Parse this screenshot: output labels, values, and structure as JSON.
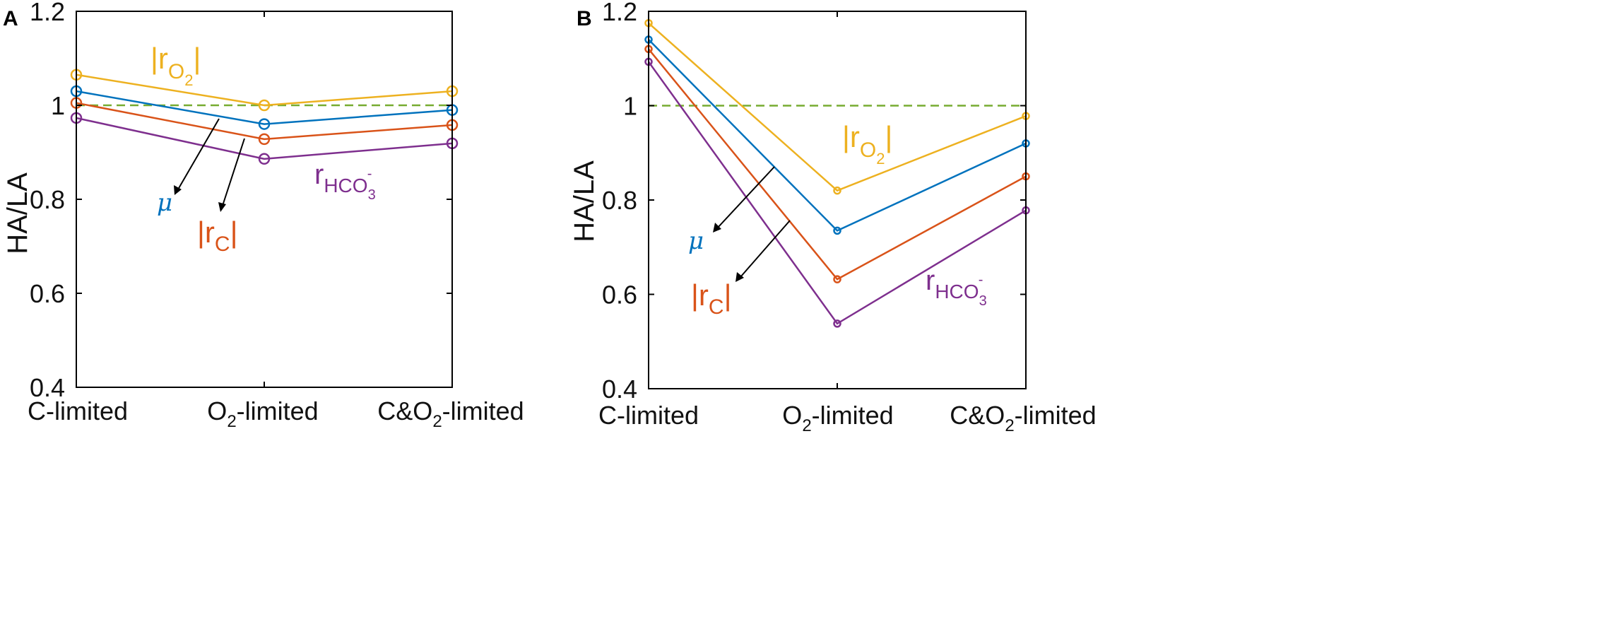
{
  "colors": {
    "rO2": "#EDB120",
    "mu": "#0072BD",
    "rC": "#D95319",
    "rHCO3": "#7E2F8E",
    "reference": "#77AC30",
    "axis": "#000000"
  },
  "labels": {
    "rO2": {
      "bar_open": "|r",
      "sub": "O",
      "subsub": "2",
      "bar_close": "|"
    },
    "rC": {
      "bar_open": "|r",
      "sub": "C",
      "bar_close": "|"
    },
    "rHCO3": {
      "main": "r",
      "sub": "HCO",
      "subsub": "3",
      "sup": "-"
    },
    "mu": "μ"
  },
  "chart_data": [
    {
      "panel": "A",
      "type": "line",
      "ylabel": "HA/LA",
      "xlabel": "",
      "categories": [
        {
          "main": "C-limited",
          "sub": "",
          "rest": ""
        },
        {
          "main": "O",
          "sub": "2",
          "rest": "-limited"
        },
        {
          "main": "C&O",
          "sub": "2",
          "rest": "-limited"
        }
      ],
      "ylim": [
        0.4,
        1.2
      ],
      "yticks": [
        "0.4",
        "0.6",
        "0.8",
        "1",
        "1.2"
      ],
      "reference_line": 1.0,
      "series": [
        {
          "key": "rO2",
          "name": "|rO2|",
          "values": [
            1.065,
            1.0,
            1.03
          ]
        },
        {
          "key": "mu",
          "name": "μ",
          "values": [
            1.03,
            0.96,
            0.99
          ]
        },
        {
          "key": "rC",
          "name": "|rC|",
          "values": [
            1.005,
            0.928,
            0.958
          ]
        },
        {
          "key": "rHCO3",
          "name": "rHCO3-",
          "values": [
            0.973,
            0.886,
            0.919
          ]
        }
      ]
    },
    {
      "panel": "B",
      "type": "line",
      "ylabel": "HA/LA",
      "xlabel": "",
      "categories": [
        {
          "main": "C-limited",
          "sub": "",
          "rest": ""
        },
        {
          "main": "O",
          "sub": "2",
          "rest": "-limited"
        },
        {
          "main": "C&O",
          "sub": "2",
          "rest": "-limited"
        }
      ],
      "ylim": [
        0.4,
        1.2
      ],
      "yticks": [
        "0.4",
        "0.6",
        "0.8",
        "1",
        "1.2"
      ],
      "reference_line": 1.0,
      "series": [
        {
          "key": "rO2",
          "name": "|rO2|",
          "values": [
            1.175,
            0.82,
            0.978
          ]
        },
        {
          "key": "mu",
          "name": "μ",
          "values": [
            1.14,
            0.735,
            0.92
          ]
        },
        {
          "key": "rC",
          "name": "|rC|",
          "values": [
            1.12,
            0.632,
            0.85
          ]
        },
        {
          "key": "rHCO3",
          "name": "rHCO3-",
          "values": [
            1.093,
            0.538,
            0.778
          ]
        }
      ]
    }
  ]
}
